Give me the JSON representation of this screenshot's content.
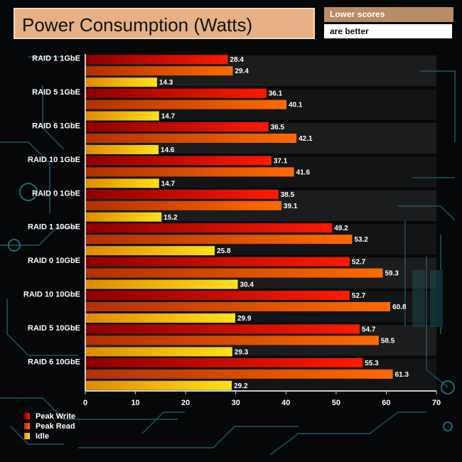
{
  "chart_data": {
    "type": "bar",
    "orientation": "horizontal",
    "title": "Power Consumption (Watts)",
    "notes": [
      "Lower scores",
      "are better"
    ],
    "categories": [
      "RAID 1 1GbE",
      "RAID 5 1GbE",
      "RAID 6 1GbE",
      "RAID 10 1GbE",
      "RAID 0 1GbE",
      "RAID 1 10GbE",
      "RAID 0 10GbE",
      "RAID 10 10GbE",
      "RAID 5 10GbE",
      "RAID 6 10GbE"
    ],
    "series": [
      {
        "name": "Peak Write",
        "color_dark": "#8e0000",
        "color_light": "#ff1a00",
        "values": [
          28.4,
          36.1,
          36.5,
          37.1,
          38.5,
          49.2,
          52.7,
          52.7,
          54.7,
          55.3
        ]
      },
      {
        "name": "Peak Read",
        "color_dark": "#b33000",
        "color_light": "#ff6a00",
        "values": [
          29.4,
          40.1,
          42.1,
          41.6,
          39.1,
          53.2,
          59.3,
          60.8,
          58.5,
          61.3
        ]
      },
      {
        "name": "Idle",
        "color_dark": "#e08a00",
        "color_light": "#ffe11a",
        "values": [
          14.3,
          14.7,
          14.6,
          14.7,
          15.2,
          25.8,
          30.4,
          29.9,
          29.3,
          29.2
        ]
      }
    ],
    "xlim": [
      0,
      70
    ],
    "xticks": [
      0,
      10,
      20,
      30,
      40,
      50,
      60,
      70
    ],
    "xlabel": "",
    "ylabel": "",
    "legend_position": "bottom-left",
    "grid": false
  }
}
